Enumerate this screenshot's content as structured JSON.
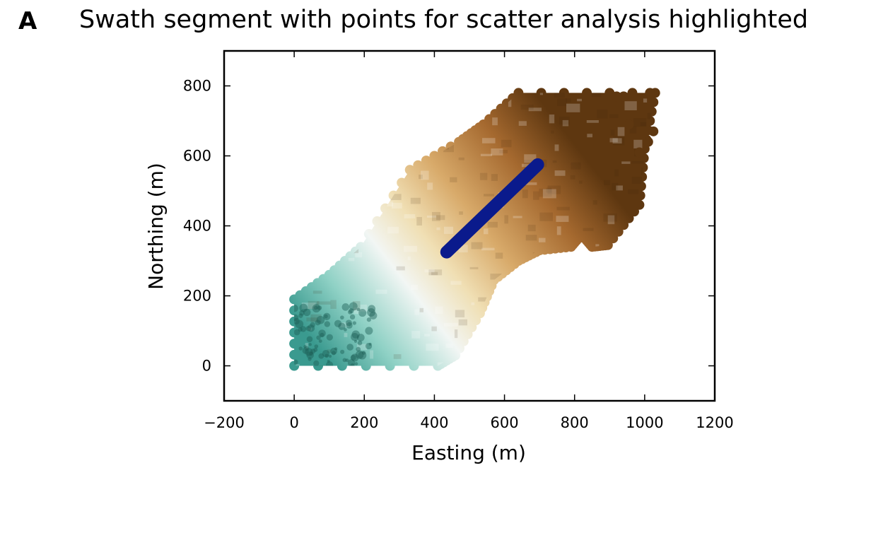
{
  "figure": {
    "panel_letter": "A",
    "title": "Swath segment with points for scatter analysis highlighted"
  },
  "chart_data": {
    "type": "scatter",
    "title": "Swath segment with points for scatter analysis highlighted",
    "xlabel": "Easting (m)",
    "ylabel": "Northing (m)",
    "xlim": [
      -200,
      1200
    ],
    "ylim": [
      -100,
      900
    ],
    "xticks": [
      -200,
      0,
      200,
      400,
      600,
      800,
      1000,
      1200
    ],
    "yticks": [
      0,
      200,
      400,
      600,
      800
    ],
    "grid": false,
    "colormap": [
      "#3a9a8f",
      "#8fd1c5",
      "#f2f6f4",
      "#f0dfb4",
      "#d8aa6a",
      "#a5692f",
      "#5e3710"
    ],
    "point_cloud_outline": [
      [
        0,
        0
      ],
      [
        410,
        0
      ],
      [
        460,
        30
      ],
      [
        530,
        150
      ],
      [
        570,
        245
      ],
      [
        640,
        300
      ],
      [
        700,
        330
      ],
      [
        790,
        340
      ],
      [
        820,
        375
      ],
      [
        850,
        340
      ],
      [
        895,
        345
      ],
      [
        985,
        460
      ],
      [
        1000,
        620
      ],
      [
        1030,
        780
      ],
      [
        640,
        780
      ],
      [
        540,
        690
      ],
      [
        470,
        640
      ],
      [
        330,
        560
      ],
      [
        190,
        340
      ],
      [
        100,
        260
      ],
      [
        0,
        190
      ]
    ],
    "highlight_series": {
      "x": [
        435,
        695
      ],
      "y": [
        325,
        575
      ],
      "color": "#0a1a8c"
    },
    "extra_points": {
      "x": [
        1025,
        955,
        1010,
        985,
        940,
        920,
        1015
      ],
      "y": [
        670,
        690,
        640,
        610,
        770,
        770,
        780
      ]
    }
  }
}
